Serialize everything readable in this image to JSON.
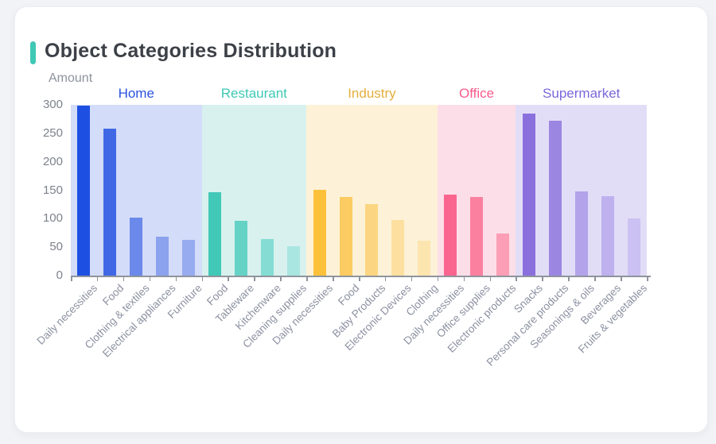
{
  "card": {
    "background": "#ffffff"
  },
  "header": {
    "accent_color": "#3fc8b4",
    "title": "Object Categories Distribution"
  },
  "chart_data": {
    "type": "bar",
    "title": "Object Categories Distribution",
    "xlabel": "",
    "ylabel": "Amount",
    "ylim": [
      0,
      300
    ],
    "yticks": [
      0,
      50,
      100,
      150,
      200,
      250,
      300
    ],
    "grid": false,
    "legend_position": "none",
    "axis_color": "#8f949c",
    "groups": [
      {
        "name": "Home",
        "label_color": "#2c52e0",
        "band_color": "#d3dcf8",
        "bars": [
          {
            "label": "Daily necessities",
            "value": 298,
            "color": "#1d50e2"
          },
          {
            "label": "Food",
            "value": 258,
            "color": "#4068e5"
          },
          {
            "label": "Clothing & textiles",
            "value": 102,
            "color": "#6b89ea"
          },
          {
            "label": "Electrical appliances",
            "value": 68,
            "color": "#8ba2ee"
          },
          {
            "label": "Furniture",
            "value": 63,
            "color": "#97abf0"
          }
        ]
      },
      {
        "name": "Restaurant",
        "label_color": "#3ec9b5",
        "band_color": "#d8f1ee",
        "bars": [
          {
            "label": "Food",
            "value": 147,
            "color": "#41c8b6"
          },
          {
            "label": "Tableware",
            "value": 96,
            "color": "#65d2c6"
          },
          {
            "label": "Kitchenware",
            "value": 64,
            "color": "#84dcd3"
          },
          {
            "label": "Cleaning supplies",
            "value": 51,
            "color": "#a9e6e1"
          }
        ]
      },
      {
        "name": "Industry",
        "label_color": "#e4af3e",
        "band_color": "#fdf2d7",
        "bars": [
          {
            "label": "Daily necessities",
            "value": 150,
            "color": "#fcc13b"
          },
          {
            "label": "Food",
            "value": 138,
            "color": "#fccb62"
          },
          {
            "label": "Baby Products",
            "value": 126,
            "color": "#fcd582"
          },
          {
            "label": "Electronic Devices",
            "value": 98,
            "color": "#fddf9f"
          },
          {
            "label": "Clothing",
            "value": 62,
            "color": "#fde5b0"
          }
        ]
      },
      {
        "name": "Office",
        "label_color": "#fa5c8c",
        "band_color": "#fcdee8",
        "bars": [
          {
            "label": "Daily necessities",
            "value": 142,
            "color": "#fa6590"
          },
          {
            "label": "Office supplies",
            "value": 138,
            "color": "#fb80a0"
          },
          {
            "label": "Electronic products",
            "value": 74,
            "color": "#fc9eb5"
          }
        ]
      },
      {
        "name": "Supermarket",
        "label_color": "#7c67da",
        "band_color": "#e2ddf7",
        "bars": [
          {
            "label": "Snacks",
            "value": 285,
            "color": "#8a70dd"
          },
          {
            "label": "Personal care products",
            "value": 272,
            "color": "#9b86e2"
          },
          {
            "label": "Seasonings & oils",
            "value": 148,
            "color": "#b2a3ea"
          },
          {
            "label": "Beverages",
            "value": 140,
            "color": "#beb1ee"
          },
          {
            "label": "Fruits & vegetables",
            "value": 101,
            "color": "#cbc1f2"
          }
        ]
      }
    ]
  }
}
